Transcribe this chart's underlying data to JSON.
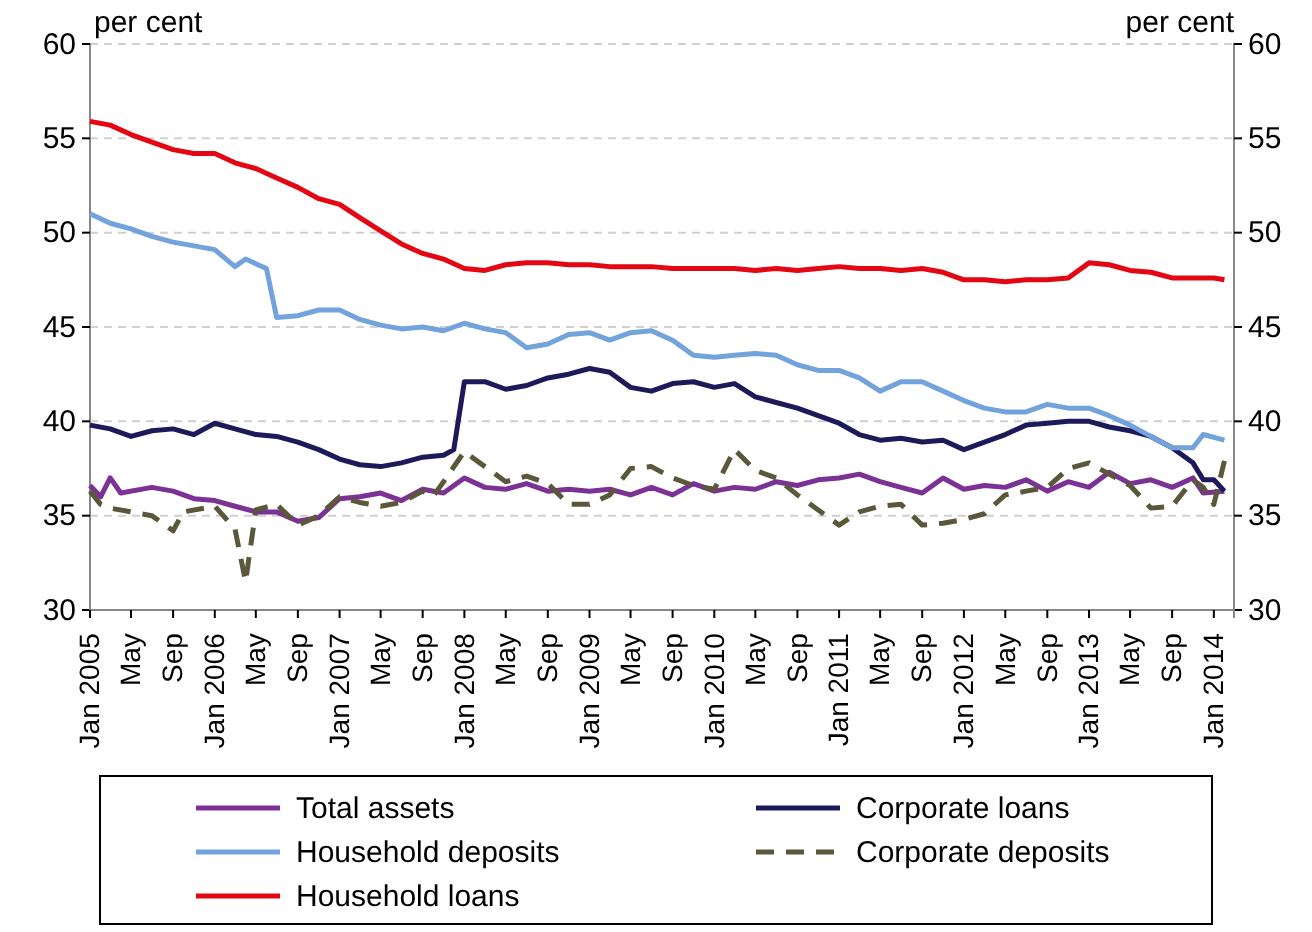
{
  "chart_data": {
    "type": "line",
    "ylabel": "per cent",
    "y2label": "per cent",
    "xlim": [
      "2005-01",
      "2014-03"
    ],
    "ylim": [
      30,
      60
    ],
    "yticks": [
      30,
      35,
      40,
      45,
      50,
      55,
      60
    ],
    "y2lim": [
      30,
      60
    ],
    "y2ticks": [
      30,
      35,
      40,
      45,
      50,
      55,
      60
    ],
    "grid": "y",
    "legend": "bottom",
    "marker": "none",
    "xticks": [
      {
        "value": "2005-01",
        "label": "Jan 2005"
      },
      {
        "value": "2005-05",
        "label": "May"
      },
      {
        "value": "2005-09",
        "label": "Sep"
      },
      {
        "value": "2006-01",
        "label": "Jan 2006"
      },
      {
        "value": "2006-05",
        "label": "May"
      },
      {
        "value": "2006-09",
        "label": "Sep"
      },
      {
        "value": "2007-01",
        "label": "Jan 2007"
      },
      {
        "value": "2007-05",
        "label": "May"
      },
      {
        "value": "2007-09",
        "label": "Sep"
      },
      {
        "value": "2008-01",
        "label": "Jan 2008"
      },
      {
        "value": "2008-05",
        "label": "May"
      },
      {
        "value": "2008-09",
        "label": "Sep"
      },
      {
        "value": "2009-01",
        "label": "Jan 2009"
      },
      {
        "value": "2009-05",
        "label": "May"
      },
      {
        "value": "2009-09",
        "label": "Sep"
      },
      {
        "value": "2010-01",
        "label": "Jan 2010"
      },
      {
        "value": "2010-05",
        "label": "May"
      },
      {
        "value": "2010-09",
        "label": "Sep"
      },
      {
        "value": "2011-01",
        "label": "Jan 2011"
      },
      {
        "value": "2011-05",
        "label": "May"
      },
      {
        "value": "2011-09",
        "label": "Sep"
      },
      {
        "value": "2012-01",
        "label": "Jan 2012"
      },
      {
        "value": "2012-05",
        "label": "May"
      },
      {
        "value": "2012-09",
        "label": "Sep"
      },
      {
        "value": "2013-01",
        "label": "Jan 2013"
      },
      {
        "value": "2013-05",
        "label": "May"
      },
      {
        "value": "2013-09",
        "label": "Sep"
      },
      {
        "value": "2014-01",
        "label": "Jan 2014"
      }
    ],
    "series": [
      {
        "name": "Total assets",
        "color": "#7b3294",
        "line_style": "solid",
        "x": [
          "2005-01",
          "2005-02",
          "2005-03",
          "2005-04",
          "2005-07",
          "2005-09",
          "2005-11",
          "2006-01",
          "2006-03",
          "2006-05",
          "2006-07",
          "2006-09",
          "2006-11",
          "2007-01",
          "2007-03",
          "2007-05",
          "2007-07",
          "2007-09",
          "2007-11",
          "2008-01",
          "2008-03",
          "2008-05",
          "2008-07",
          "2008-09",
          "2008-11",
          "2009-01",
          "2009-03",
          "2009-05",
          "2009-07",
          "2009-09",
          "2009-11",
          "2010-01",
          "2010-03",
          "2010-05",
          "2010-07",
          "2010-09",
          "2010-11",
          "2011-01",
          "2011-03",
          "2011-05",
          "2011-07",
          "2011-09",
          "2011-11",
          "2012-01",
          "2012-03",
          "2012-05",
          "2012-07",
          "2012-09",
          "2012-11",
          "2013-01",
          "2013-03",
          "2013-05",
          "2013-07",
          "2013-09",
          "2013-11",
          "2013-12",
          "2014-02"
        ],
        "values": [
          36.6,
          36.0,
          37.0,
          36.2,
          36.5,
          36.3,
          35.9,
          35.8,
          35.5,
          35.2,
          35.2,
          34.7,
          34.9,
          35.9,
          36.0,
          36.2,
          35.8,
          36.4,
          36.2,
          37.0,
          36.5,
          36.4,
          36.7,
          36.3,
          36.4,
          36.3,
          36.4,
          36.1,
          36.5,
          36.1,
          36.7,
          36.3,
          36.5,
          36.4,
          36.8,
          36.6,
          36.9,
          37.0,
          37.2,
          36.8,
          36.5,
          36.2,
          37.0,
          36.4,
          36.6,
          36.5,
          36.9,
          36.3,
          36.8,
          36.5,
          37.3,
          36.7,
          36.9,
          36.5,
          37.0,
          36.2,
          36.3
        ]
      },
      {
        "name": "Corporate loans",
        "color": "#1c1a5a",
        "line_style": "solid",
        "x": [
          "2005-01",
          "2005-03",
          "2005-05",
          "2005-07",
          "2005-09",
          "2005-11",
          "2006-01",
          "2006-03",
          "2006-05",
          "2006-07",
          "2006-09",
          "2006-11",
          "2007-01",
          "2007-03",
          "2007-05",
          "2007-07",
          "2007-09",
          "2007-11",
          "2007-12",
          "2008-01",
          "2008-03",
          "2008-05",
          "2008-07",
          "2008-09",
          "2008-11",
          "2009-01",
          "2009-03",
          "2009-05",
          "2009-07",
          "2009-09",
          "2009-11",
          "2010-01",
          "2010-03",
          "2010-05",
          "2010-07",
          "2010-09",
          "2010-11",
          "2011-01",
          "2011-03",
          "2011-05",
          "2011-07",
          "2011-09",
          "2011-11",
          "2012-01",
          "2012-03",
          "2012-05",
          "2012-07",
          "2012-09",
          "2012-11",
          "2013-01",
          "2013-03",
          "2013-05",
          "2013-07",
          "2013-09",
          "2013-11",
          "2013-12",
          "2014-01",
          "2014-02"
        ],
        "values": [
          39.8,
          39.6,
          39.2,
          39.5,
          39.6,
          39.3,
          39.9,
          39.6,
          39.3,
          39.2,
          38.9,
          38.5,
          38.0,
          37.7,
          37.6,
          37.8,
          38.1,
          38.2,
          38.5,
          42.1,
          42.1,
          41.7,
          41.9,
          42.3,
          42.5,
          42.8,
          42.6,
          41.8,
          41.6,
          42.0,
          42.1,
          41.8,
          42.0,
          41.3,
          41.0,
          40.7,
          40.3,
          39.9,
          39.3,
          39.0,
          39.1,
          38.9,
          39.0,
          38.5,
          38.9,
          39.3,
          39.8,
          39.9,
          40.0,
          40.0,
          39.7,
          39.5,
          39.2,
          38.6,
          37.8,
          36.9,
          36.9,
          36.3
        ]
      },
      {
        "name": "Household deposits",
        "color": "#72a3dc",
        "line_style": "solid",
        "x": [
          "2005-01",
          "2005-03",
          "2005-05",
          "2005-07",
          "2005-09",
          "2005-11",
          "2006-01",
          "2006-03",
          "2006-04",
          "2006-06",
          "2006-07",
          "2006-09",
          "2006-11",
          "2007-01",
          "2007-03",
          "2007-05",
          "2007-07",
          "2007-09",
          "2007-11",
          "2008-01",
          "2008-03",
          "2008-05",
          "2008-07",
          "2008-09",
          "2008-11",
          "2009-01",
          "2009-03",
          "2009-05",
          "2009-07",
          "2009-09",
          "2009-11",
          "2010-01",
          "2010-03",
          "2010-05",
          "2010-07",
          "2010-09",
          "2010-11",
          "2011-01",
          "2011-03",
          "2011-05",
          "2011-07",
          "2011-09",
          "2011-11",
          "2012-01",
          "2012-03",
          "2012-05",
          "2012-07",
          "2012-09",
          "2012-11",
          "2013-01",
          "2013-03",
          "2013-05",
          "2013-07",
          "2013-09",
          "2013-11",
          "2013-12",
          "2014-02"
        ],
        "values": [
          51.0,
          50.5,
          50.2,
          49.8,
          49.5,
          49.3,
          49.1,
          48.2,
          48.6,
          48.1,
          45.5,
          45.6,
          45.9,
          45.9,
          45.4,
          45.1,
          44.9,
          45.0,
          44.8,
          45.2,
          44.9,
          44.7,
          43.9,
          44.1,
          44.6,
          44.7,
          44.3,
          44.7,
          44.8,
          44.3,
          43.5,
          43.4,
          43.5,
          43.6,
          43.5,
          43.0,
          42.7,
          42.7,
          42.3,
          41.6,
          42.1,
          42.1,
          41.6,
          41.1,
          40.7,
          40.5,
          40.5,
          40.9,
          40.7,
          40.7,
          40.3,
          39.8,
          39.2,
          38.6,
          38.6,
          39.3,
          39.0
        ]
      },
      {
        "name": "Corporate deposits",
        "color": "#5a573a",
        "line_style": "dashed",
        "x": [
          "2005-01",
          "2005-02",
          "2005-03",
          "2005-07",
          "2005-09",
          "2005-10",
          "2006-01",
          "2006-03",
          "2006-04",
          "2006-05",
          "2006-07",
          "2006-09",
          "2006-11",
          "2007-01",
          "2007-03",
          "2007-05",
          "2007-07",
          "2007-09",
          "2007-10",
          "2007-11",
          "2008-01",
          "2008-03",
          "2008-05",
          "2008-07",
          "2008-09",
          "2008-11",
          "2009-01",
          "2009-03",
          "2009-05",
          "2009-07",
          "2009-09",
          "2009-11",
          "2010-01",
          "2010-03",
          "2010-05",
          "2010-07",
          "2010-09",
          "2010-11",
          "2011-01",
          "2011-03",
          "2011-05",
          "2011-07",
          "2011-09",
          "2011-11",
          "2012-01",
          "2012-03",
          "2012-05",
          "2012-07",
          "2012-09",
          "2012-11",
          "2013-01",
          "2013-03",
          "2013-05",
          "2013-07",
          "2013-09",
          "2013-11",
          "2013-12",
          "2014-01",
          "2014-02"
        ],
        "values": [
          36.3,
          35.6,
          35.4,
          35.0,
          34.2,
          35.2,
          35.5,
          34.3,
          31.5,
          35.3,
          35.6,
          34.5,
          35.0,
          36.0,
          35.7,
          35.5,
          35.7,
          36.3,
          36.0,
          36.8,
          38.4,
          37.6,
          36.8,
          37.1,
          36.7,
          35.6,
          35.6,
          36.1,
          37.5,
          37.6,
          37.0,
          36.6,
          36.4,
          38.5,
          37.4,
          37.0,
          36.1,
          35.3,
          34.5,
          35.2,
          35.5,
          35.6,
          34.5,
          34.6,
          34.8,
          35.1,
          36.1,
          36.3,
          36.5,
          37.5,
          37.8,
          37.2,
          36.6,
          35.4,
          35.5,
          36.9,
          36.5,
          35.6,
          37.9
        ]
      },
      {
        "name": "Household loans",
        "color": "#e30613",
        "line_style": "solid",
        "x": [
          "2005-01",
          "2005-03",
          "2005-05",
          "2005-07",
          "2005-09",
          "2005-11",
          "2006-01",
          "2006-03",
          "2006-05",
          "2006-07",
          "2006-09",
          "2006-11",
          "2007-01",
          "2007-03",
          "2007-05",
          "2007-07",
          "2007-09",
          "2007-11",
          "2008-01",
          "2008-03",
          "2008-05",
          "2008-07",
          "2008-09",
          "2008-11",
          "2009-01",
          "2009-03",
          "2009-05",
          "2009-07",
          "2009-09",
          "2009-11",
          "2010-01",
          "2010-03",
          "2010-05",
          "2010-07",
          "2010-09",
          "2010-11",
          "2011-01",
          "2011-03",
          "2011-05",
          "2011-07",
          "2011-09",
          "2011-11",
          "2012-01",
          "2012-03",
          "2012-05",
          "2012-07",
          "2012-09",
          "2012-11",
          "2013-01",
          "2013-03",
          "2013-05",
          "2013-07",
          "2013-09",
          "2013-11",
          "2014-01",
          "2014-02"
        ],
        "values": [
          55.9,
          55.7,
          55.2,
          54.8,
          54.4,
          54.2,
          54.2,
          53.7,
          53.4,
          52.9,
          52.4,
          51.8,
          51.5,
          50.8,
          50.1,
          49.4,
          48.9,
          48.6,
          48.1,
          48.0,
          48.3,
          48.4,
          48.4,
          48.3,
          48.3,
          48.2,
          48.2,
          48.2,
          48.1,
          48.1,
          48.1,
          48.1,
          48.0,
          48.1,
          48.0,
          48.1,
          48.2,
          48.1,
          48.1,
          48.0,
          48.1,
          47.9,
          47.5,
          47.5,
          47.4,
          47.5,
          47.5,
          47.6,
          48.4,
          48.3,
          48.0,
          47.9,
          47.6,
          47.6,
          47.6,
          47.5
        ]
      }
    ]
  }
}
